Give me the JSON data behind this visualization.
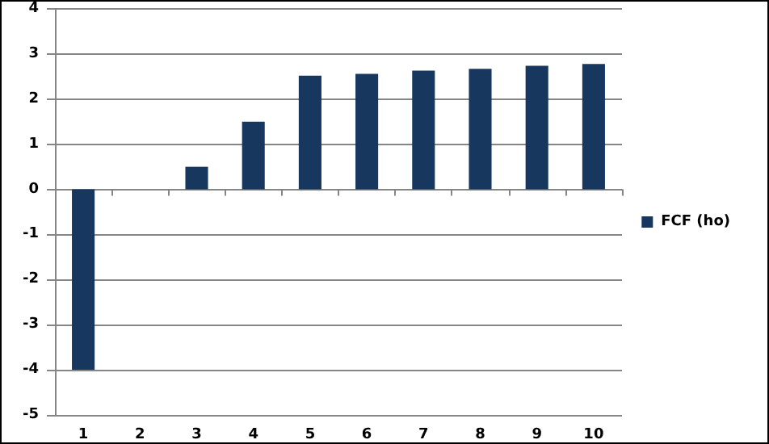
{
  "chart_data": {
    "type": "bar",
    "categories": [
      "1",
      "2",
      "3",
      "4",
      "5",
      "6",
      "7",
      "8",
      "9",
      "10"
    ],
    "series": [
      {
        "name": "FCF (ho)",
        "color": "#17375e",
        "values": [
          -4,
          0,
          0.5,
          1.5,
          2.52,
          2.56,
          2.63,
          2.67,
          2.74,
          2.78
        ]
      }
    ],
    "ylim": [
      -5,
      4
    ],
    "yticks": [
      -5,
      -4,
      -3,
      -2,
      -1,
      0,
      1,
      2,
      3,
      4
    ],
    "grid": "y",
    "legend": "right"
  }
}
